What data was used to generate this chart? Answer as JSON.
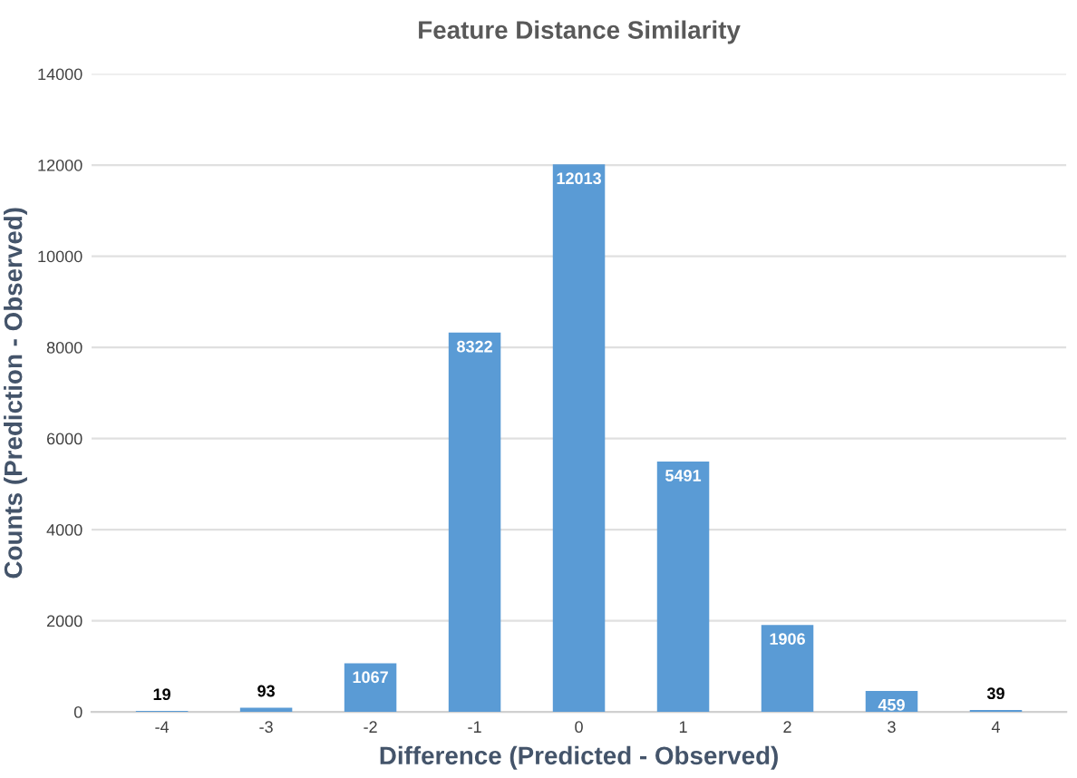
{
  "chart_data": {
    "type": "bar",
    "title": "Feature Distance Similarity",
    "xlabel": "Difference (Predicted - Observed)",
    "ylabel": "Counts (Prediction - Observed)",
    "categories": [
      "-4",
      "-3",
      "-2",
      "-1",
      "0",
      "1",
      "2",
      "3",
      "4"
    ],
    "values": [
      19,
      93,
      1067,
      8322,
      12013,
      5491,
      1906,
      459,
      39
    ],
    "color": "#5a9bd5",
    "ylim": [
      0,
      14000
    ],
    "yticks": [
      0,
      2000,
      4000,
      6000,
      8000,
      10000,
      12000,
      14000
    ],
    "grid": "y",
    "data_labels": true
  }
}
